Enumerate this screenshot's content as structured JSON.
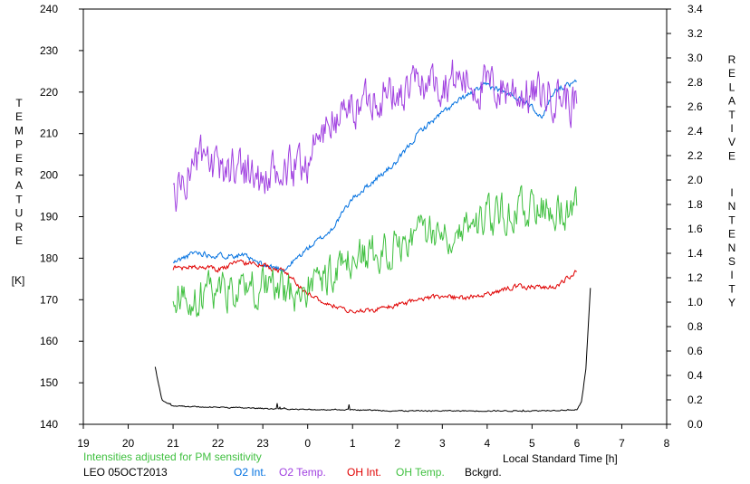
{
  "chart_data": {
    "type": "line",
    "left_axis": {
      "label_letters": [
        "T",
        "E",
        "M",
        "P",
        "E",
        "R",
        "A",
        "T",
        "U",
        "R",
        "E"
      ],
      "unit": "[K]",
      "ylim": [
        140,
        240
      ],
      "ticks": [
        "140",
        "150",
        "160",
        "170",
        "180",
        "190",
        "200",
        "210",
        "220",
        "230",
        "240"
      ]
    },
    "right_axis": {
      "label_letters_1": [
        "R",
        "E",
        "L",
        "A",
        "T",
        "I",
        "V",
        "E"
      ],
      "label_letters_2": [
        "I",
        "N",
        "T",
        "E",
        "N",
        "S",
        "I",
        "T",
        "Y"
      ],
      "ylim": [
        0.0,
        3.4
      ],
      "ticks": [
        "0.0",
        "0.2",
        "0.4",
        "0.6",
        "0.8",
        "1.0",
        "1.2",
        "1.4",
        "1.6",
        "1.8",
        "2.0",
        "2.2",
        "2.4",
        "2.6",
        "2.8",
        "3.0",
        "3.2",
        "3.4"
      ]
    },
    "x_axis": {
      "label": "Local Standard Time [h]",
      "xlim": [
        19,
        32
      ],
      "ticks": [
        "19",
        "20",
        "21",
        "22",
        "23",
        "0",
        "1",
        "2",
        "3",
        "4",
        "5",
        "6",
        "7",
        "8"
      ]
    },
    "note": "Intensities adjusted for PM sensitivity",
    "station": "LEO 05OCT2013",
    "series": [
      {
        "name": "O2 Int.",
        "axis": "right",
        "color": "#0070e0",
        "anchors": [
          [
            21.0,
            1.32
          ],
          [
            21.5,
            1.41
          ],
          [
            22.0,
            1.38
          ],
          [
            22.5,
            1.39
          ],
          [
            23.0,
            1.3
          ],
          [
            23.5,
            1.27
          ],
          [
            24.0,
            1.44
          ],
          [
            24.5,
            1.58
          ],
          [
            25.0,
            1.85
          ],
          [
            25.5,
            2.0
          ],
          [
            26.0,
            2.15
          ],
          [
            26.5,
            2.4
          ],
          [
            27.0,
            2.55
          ],
          [
            27.5,
            2.68
          ],
          [
            28.0,
            2.78
          ],
          [
            28.5,
            2.7
          ],
          [
            29.0,
            2.62
          ],
          [
            29.2,
            2.5
          ],
          [
            29.5,
            2.74
          ],
          [
            30.0,
            2.8
          ]
        ]
      },
      {
        "name": "O2 Temp.",
        "axis": "left",
        "color": "#a040e0",
        "anchors": [
          [
            21.0,
            195
          ],
          [
            21.5,
            204
          ],
          [
            22.0,
            200
          ],
          [
            22.5,
            203
          ],
          [
            23.0,
            198
          ],
          [
            23.5,
            200
          ],
          [
            24.0,
            204
          ],
          [
            24.5,
            213
          ],
          [
            25.0,
            216
          ],
          [
            25.5,
            220
          ],
          [
            26.0,
            219
          ],
          [
            26.5,
            222
          ],
          [
            27.0,
            223
          ],
          [
            27.5,
            223
          ],
          [
            28.0,
            221
          ],
          [
            28.5,
            221
          ],
          [
            29.0,
            219
          ],
          [
            29.5,
            220
          ],
          [
            30.0,
            217
          ]
        ]
      },
      {
        "name": "OH Int.",
        "axis": "right",
        "color": "#e00000",
        "anchors": [
          [
            21.0,
            1.28
          ],
          [
            21.5,
            1.29
          ],
          [
            22.0,
            1.27
          ],
          [
            22.5,
            1.33
          ],
          [
            23.0,
            1.3
          ],
          [
            23.5,
            1.25
          ],
          [
            24.0,
            1.07
          ],
          [
            24.5,
            0.98
          ],
          [
            25.0,
            0.92
          ],
          [
            25.5,
            0.94
          ],
          [
            26.0,
            0.97
          ],
          [
            26.5,
            1.02
          ],
          [
            27.0,
            1.05
          ],
          [
            27.5,
            1.03
          ],
          [
            28.0,
            1.06
          ],
          [
            28.5,
            1.12
          ],
          [
            29.0,
            1.13
          ],
          [
            29.5,
            1.12
          ],
          [
            30.0,
            1.25
          ]
        ]
      },
      {
        "name": "OH Temp.",
        "axis": "left",
        "color": "#40c040",
        "anchors": [
          [
            21.0,
            172
          ],
          [
            21.5,
            170
          ],
          [
            22.0,
            173
          ],
          [
            22.5,
            172
          ],
          [
            23.0,
            174
          ],
          [
            23.5,
            171
          ],
          [
            24.0,
            173
          ],
          [
            24.5,
            176
          ],
          [
            25.0,
            179
          ],
          [
            25.5,
            181
          ],
          [
            26.0,
            184
          ],
          [
            26.5,
            186
          ],
          [
            27.0,
            187
          ],
          [
            27.5,
            188
          ],
          [
            28.0,
            190
          ],
          [
            28.5,
            191
          ],
          [
            29.0,
            192
          ],
          [
            29.5,
            193
          ],
          [
            30.0,
            191
          ]
        ]
      },
      {
        "name": "Bckgrd.",
        "axis": "right",
        "color": "#000000",
        "anchors": [
          [
            20.6,
            0.47
          ],
          [
            20.75,
            0.2
          ],
          [
            21.0,
            0.15
          ],
          [
            22.0,
            0.14
          ],
          [
            23.0,
            0.13
          ],
          [
            24.0,
            0.12
          ],
          [
            25.0,
            0.12
          ],
          [
            26.0,
            0.11
          ],
          [
            27.0,
            0.11
          ],
          [
            28.0,
            0.11
          ],
          [
            29.0,
            0.11
          ],
          [
            30.0,
            0.12
          ],
          [
            30.1,
            0.18
          ],
          [
            30.2,
            0.45
          ],
          [
            30.3,
            1.12
          ]
        ]
      }
    ],
    "grid": false,
    "legend_placement": "bottom"
  }
}
